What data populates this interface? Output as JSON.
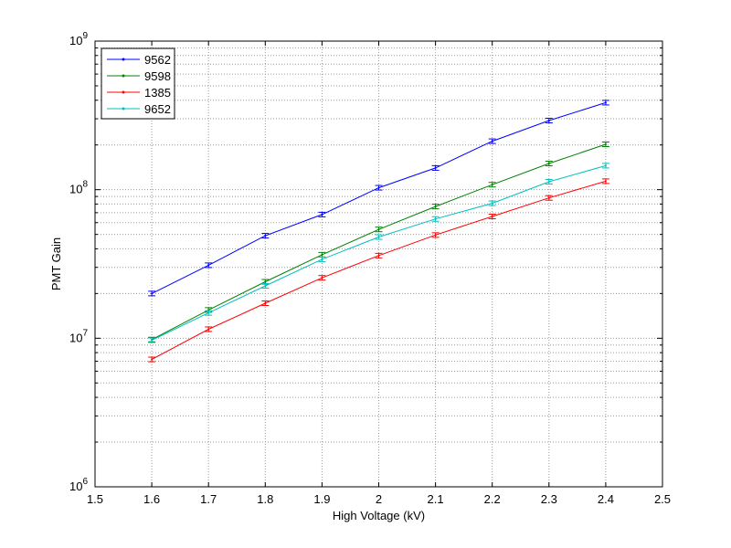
{
  "chart_data": {
    "type": "line",
    "xlabel": "High Voltage (kV)",
    "ylabel": "PMT Gain",
    "xlim": [
      1.5,
      2.5
    ],
    "ylim": [
      1000000,
      1000000000
    ],
    "yscale": "log",
    "grid": true,
    "legend_position": "top-left",
    "x_ticks": [
      "1.5",
      "1.6",
      "1.7",
      "1.8",
      "1.9",
      "2",
      "2.1",
      "2.2",
      "2.3",
      "2.4",
      "2.5"
    ],
    "y_ticks": [
      {
        "base": "10",
        "exp": "6"
      },
      {
        "base": "10",
        "exp": "7"
      },
      {
        "base": "10",
        "exp": "8"
      },
      {
        "base": "10",
        "exp": "9"
      }
    ],
    "x": [
      1.6,
      1.7,
      1.8,
      1.9,
      2.0,
      2.1,
      2.2,
      2.3,
      2.4
    ],
    "series": [
      {
        "name": "9562",
        "color": "#0000ff",
        "values": [
          20000000,
          31000000,
          49000000,
          68000000,
          103000000,
          140000000,
          212000000,
          292000000,
          385000000
        ]
      },
      {
        "name": "9598",
        "color": "#008000",
        "values": [
          9800000,
          15500000,
          24000000,
          36500000,
          54000000,
          77000000,
          108000000,
          150000000,
          202000000
        ]
      },
      {
        "name": "1385",
        "color": "#ff0000",
        "values": [
          7200000,
          11500000,
          17200000,
          25500000,
          36000000,
          49500000,
          66000000,
          88000000,
          114000000
        ]
      },
      {
        "name": "9652",
        "color": "#00bfbf",
        "values": [
          9700000,
          14800000,
          22500000,
          34000000,
          48000000,
          63500000,
          81000000,
          113000000,
          145000000
        ]
      }
    ]
  }
}
